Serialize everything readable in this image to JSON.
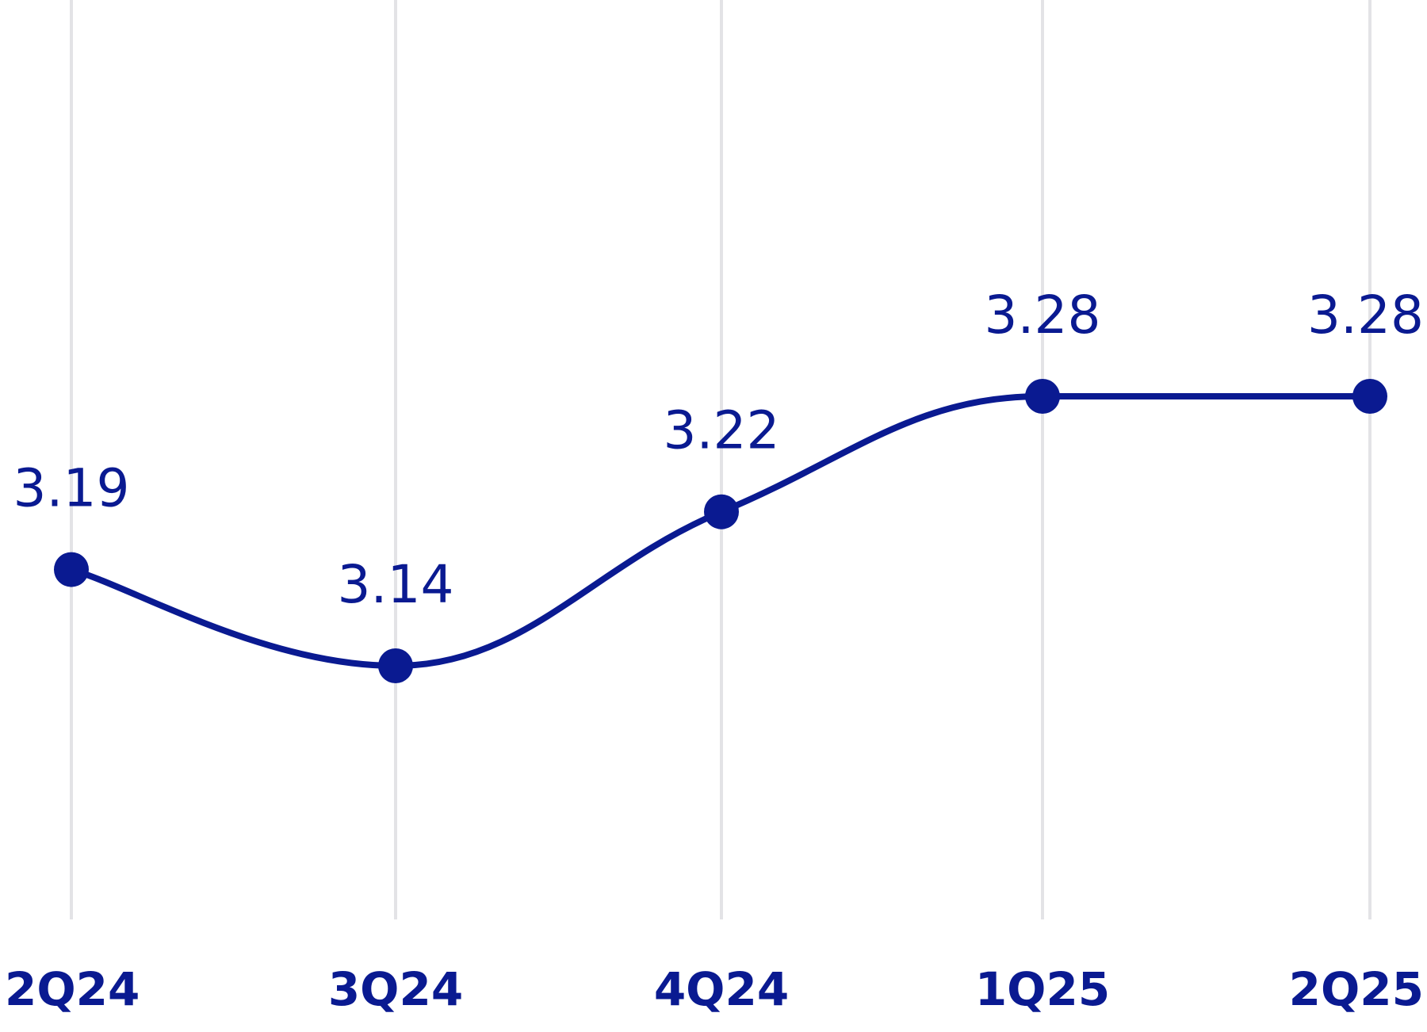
{
  "chart_data": {
    "type": "line",
    "categories": [
      "2Q24",
      "3Q24",
      "4Q24",
      "1Q25",
      "2Q25"
    ],
    "series": [
      {
        "values": [
          3.19,
          3.14,
          3.22,
          3.28,
          3.28
        ],
        "labels": [
          "3.19",
          "3.14",
          "3.22",
          "3.28",
          "3.28"
        ]
      }
    ],
    "title": "",
    "xlabel": "",
    "ylabel": "",
    "ylim": [
      2.98,
      3.5
    ],
    "grid": "vertical",
    "legend": "none",
    "colors": {
      "series": "#0a1a91",
      "labels": "#0a1a91",
      "grid": "#e3e3e6"
    }
  }
}
